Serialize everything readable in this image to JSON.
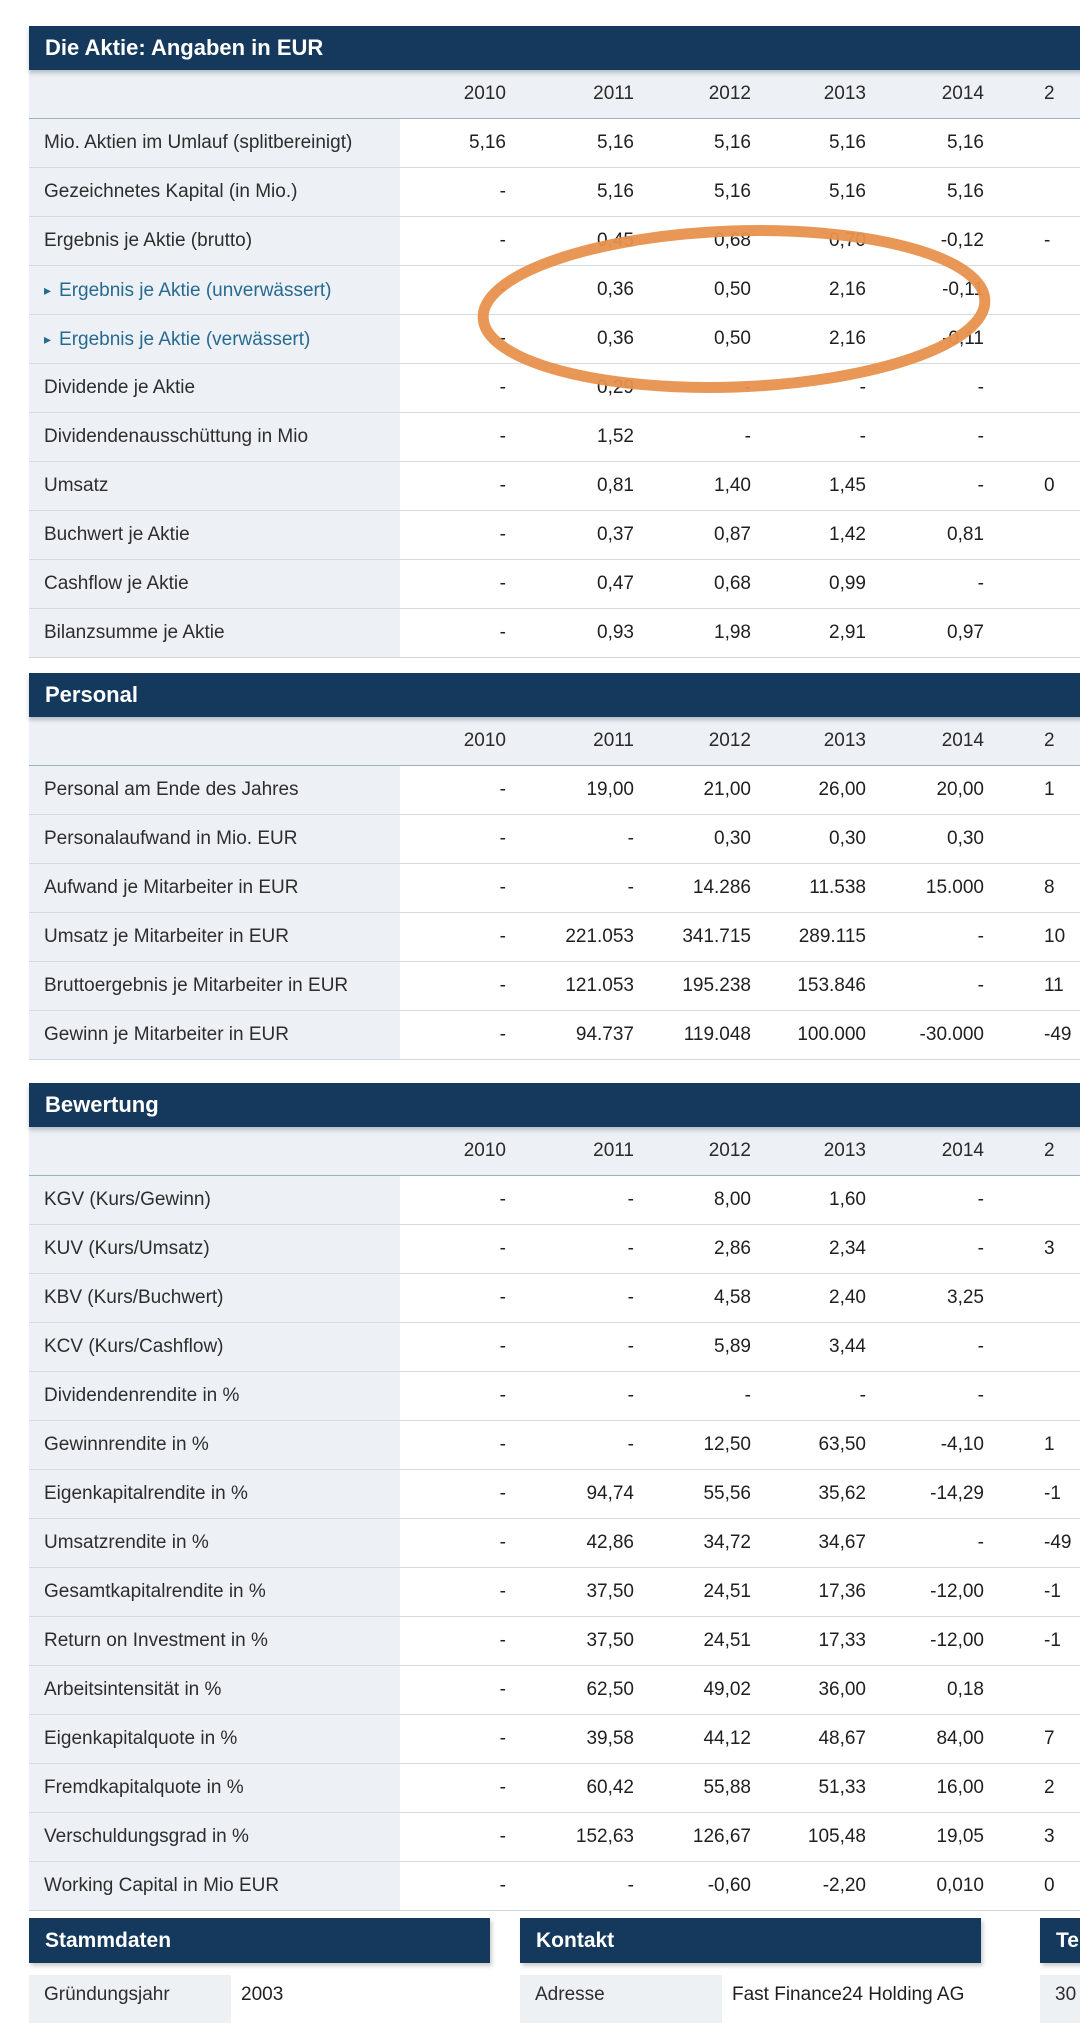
{
  "annotation": {
    "shape": "ellipse",
    "color": "#e8914d"
  },
  "tables": [
    {
      "title": "Die Aktie: Angaben in EUR",
      "years": [
        "2010",
        "2011",
        "2012",
        "2013",
        "2014",
        "2"
      ],
      "rows": [
        {
          "label": "Mio. Aktien im Umlauf (splitbereinigt)",
          "sub": false,
          "values": [
            "5,16",
            "5,16",
            "5,16",
            "5,16",
            "5,16",
            ""
          ]
        },
        {
          "label": "Gezeichnetes Kapital (in Mio.)",
          "sub": false,
          "values": [
            "-",
            "5,16",
            "5,16",
            "5,16",
            "5,16",
            ""
          ]
        },
        {
          "label": "Ergebnis je Aktie (brutto)",
          "sub": false,
          "values": [
            "-",
            "0,45",
            "0,68",
            "0,70",
            "-0,12",
            "-"
          ]
        },
        {
          "label": "Ergebnis je Aktie (unverwässert)",
          "sub": true,
          "values": [
            "-",
            "0,36",
            "0,50",
            "2,16",
            "-0,11",
            ""
          ]
        },
        {
          "label": "Ergebnis je Aktie (verwässert)",
          "sub": true,
          "values": [
            "-",
            "0,36",
            "0,50",
            "2,16",
            "-0,11",
            ""
          ]
        },
        {
          "label": "Dividende je Aktie",
          "sub": false,
          "values": [
            "-",
            "0,29",
            "-",
            "-",
            "-",
            ""
          ]
        },
        {
          "label": "Dividendenausschüttung in Mio",
          "sub": false,
          "values": [
            "-",
            "1,52",
            "-",
            "-",
            "-",
            ""
          ]
        },
        {
          "label": "Umsatz",
          "sub": false,
          "values": [
            "-",
            "0,81",
            "1,40",
            "1,45",
            "-",
            "0"
          ]
        },
        {
          "label": "Buchwert je Aktie",
          "sub": false,
          "values": [
            "-",
            "0,37",
            "0,87",
            "1,42",
            "0,81",
            ""
          ]
        },
        {
          "label": "Cashflow je Aktie",
          "sub": false,
          "values": [
            "-",
            "0,47",
            "0,68",
            "0,99",
            "-",
            ""
          ]
        },
        {
          "label": "Bilanzsumme je Aktie",
          "sub": false,
          "values": [
            "-",
            "0,93",
            "1,98",
            "2,91",
            "0,97",
            ""
          ]
        }
      ]
    },
    {
      "title": "Personal",
      "years": [
        "2010",
        "2011",
        "2012",
        "2013",
        "2014",
        "2"
      ],
      "rows": [
        {
          "label": "Personal am Ende des Jahres",
          "sub": false,
          "values": [
            "-",
            "19,00",
            "21,00",
            "26,00",
            "20,00",
            "1"
          ]
        },
        {
          "label": "Personalaufwand in Mio. EUR",
          "sub": false,
          "values": [
            "-",
            "-",
            "0,30",
            "0,30",
            "0,30",
            ""
          ]
        },
        {
          "label": "Aufwand je Mitarbeiter in EUR",
          "sub": false,
          "values": [
            "-",
            "-",
            "14.286",
            "11.538",
            "15.000",
            "8"
          ]
        },
        {
          "label": "Umsatz je Mitarbeiter in EUR",
          "sub": false,
          "values": [
            "-",
            "221.053",
            "341.715",
            "289.115",
            "-",
            "10"
          ]
        },
        {
          "label": "Bruttoergebnis je Mitarbeiter in EUR",
          "sub": false,
          "values": [
            "-",
            "121.053",
            "195.238",
            "153.846",
            "-",
            "11"
          ]
        },
        {
          "label": "Gewinn je Mitarbeiter in EUR",
          "sub": false,
          "values": [
            "-",
            "94.737",
            "119.048",
            "100.000",
            "-30.000",
            "-49"
          ]
        }
      ]
    },
    {
      "title": "Bewertung",
      "years": [
        "2010",
        "2011",
        "2012",
        "2013",
        "2014",
        "2"
      ],
      "rows": [
        {
          "label": "KGV (Kurs/Gewinn)",
          "sub": false,
          "values": [
            "-",
            "-",
            "8,00",
            "1,60",
            "-",
            ""
          ]
        },
        {
          "label": "KUV (Kurs/Umsatz)",
          "sub": false,
          "values": [
            "-",
            "-",
            "2,86",
            "2,34",
            "-",
            "3"
          ]
        },
        {
          "label": "KBV (Kurs/Buchwert)",
          "sub": false,
          "values": [
            "-",
            "-",
            "4,58",
            "2,40",
            "3,25",
            ""
          ]
        },
        {
          "label": "KCV (Kurs/Cashflow)",
          "sub": false,
          "values": [
            "-",
            "-",
            "5,89",
            "3,44",
            "-",
            ""
          ]
        },
        {
          "label": "Dividendenrendite in %",
          "sub": false,
          "values": [
            "-",
            "-",
            "-",
            "-",
            "-",
            ""
          ]
        },
        {
          "label": "Gewinnrendite in %",
          "sub": false,
          "values": [
            "-",
            "-",
            "12,50",
            "63,50",
            "-4,10",
            "1"
          ]
        },
        {
          "label": "Eigenkapitalrendite in %",
          "sub": false,
          "values": [
            "-",
            "94,74",
            "55,56",
            "35,62",
            "-14,29",
            "-1"
          ]
        },
        {
          "label": "Umsatzrendite in %",
          "sub": false,
          "values": [
            "-",
            "42,86",
            "34,72",
            "34,67",
            "-",
            "-49"
          ]
        },
        {
          "label": "Gesamtkapitalrendite in %",
          "sub": false,
          "values": [
            "-",
            "37,50",
            "24,51",
            "17,36",
            "-12,00",
            "-1"
          ]
        },
        {
          "label": "Return on Investment in %",
          "sub": false,
          "values": [
            "-",
            "37,50",
            "24,51",
            "17,33",
            "-12,00",
            "-1"
          ]
        },
        {
          "label": "Arbeitsintensität in %",
          "sub": false,
          "values": [
            "-",
            "62,50",
            "49,02",
            "36,00",
            "0,18",
            ""
          ]
        },
        {
          "label": "Eigenkapitalquote in %",
          "sub": false,
          "values": [
            "-",
            "39,58",
            "44,12",
            "48,67",
            "84,00",
            "7"
          ]
        },
        {
          "label": "Fremdkapitalquote in %",
          "sub": false,
          "values": [
            "-",
            "60,42",
            "55,88",
            "51,33",
            "16,00",
            "2"
          ]
        },
        {
          "label": "Verschuldungsgrad in %",
          "sub": false,
          "values": [
            "-",
            "152,63",
            "126,67",
            "105,48",
            "19,05",
            "3"
          ]
        },
        {
          "label": "Working Capital in Mio EUR",
          "sub": false,
          "values": [
            "-",
            "-",
            "-0,60",
            "-2,20",
            "0,010",
            "0"
          ]
        }
      ]
    }
  ],
  "info_boxes": [
    {
      "title": "Stammdaten",
      "rows": [
        {
          "label": "Gründungsjahr",
          "value": "2003"
        }
      ]
    },
    {
      "title": "Kontakt",
      "rows": [
        {
          "label": "Adresse",
          "value": "Fast Finance24 Holding AG"
        }
      ]
    },
    {
      "title": "Te",
      "rows": [
        {
          "label": "30",
          "value": ""
        }
      ]
    }
  ]
}
